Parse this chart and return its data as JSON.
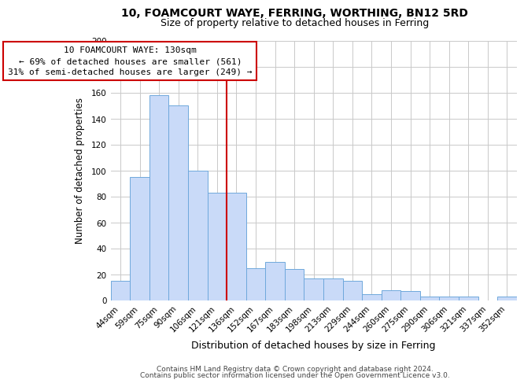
{
  "title": "10, FOAMCOURT WAYE, FERRING, WORTHING, BN12 5RD",
  "subtitle": "Size of property relative to detached houses in Ferring",
  "xlabel": "Distribution of detached houses by size in Ferring",
  "ylabel": "Number of detached properties",
  "categories": [
    "44sqm",
    "59sqm",
    "75sqm",
    "90sqm",
    "106sqm",
    "121sqm",
    "136sqm",
    "152sqm",
    "167sqm",
    "183sqm",
    "198sqm",
    "213sqm",
    "229sqm",
    "244sqm",
    "260sqm",
    "275sqm",
    "290sqm",
    "306sqm",
    "321sqm",
    "337sqm",
    "352sqm"
  ],
  "values": [
    15,
    95,
    158,
    150,
    100,
    83,
    83,
    25,
    30,
    24,
    17,
    17,
    15,
    5,
    8,
    7,
    3,
    3,
    3,
    0,
    3
  ],
  "bar_color": "#c9daf8",
  "bar_edge_color": "#6fa8dc",
  "ylim": [
    0,
    200
  ],
  "yticks": [
    0,
    20,
    40,
    60,
    80,
    100,
    120,
    140,
    160,
    180,
    200
  ],
  "vline_x": 5.5,
  "vline_color": "#cc0000",
  "annotation_title": "10 FOAMCOURT WAYE: 130sqm",
  "annotation_line1": "← 69% of detached houses are smaller (561)",
  "annotation_line2": "31% of semi-detached houses are larger (249) →",
  "annotation_box_color": "#ffffff",
  "annotation_box_edge": "#cc0000",
  "footer1": "Contains HM Land Registry data © Crown copyright and database right 2024.",
  "footer2": "Contains public sector information licensed under the Open Government Licence v3.0.",
  "background_color": "#ffffff",
  "grid_color": "#c9c9c9",
  "title_fontsize": 10,
  "subtitle_fontsize": 9,
  "xlabel_fontsize": 9,
  "ylabel_fontsize": 8.5,
  "tick_fontsize": 7.5,
  "annotation_fontsize": 8,
  "footer_fontsize": 6.5
}
